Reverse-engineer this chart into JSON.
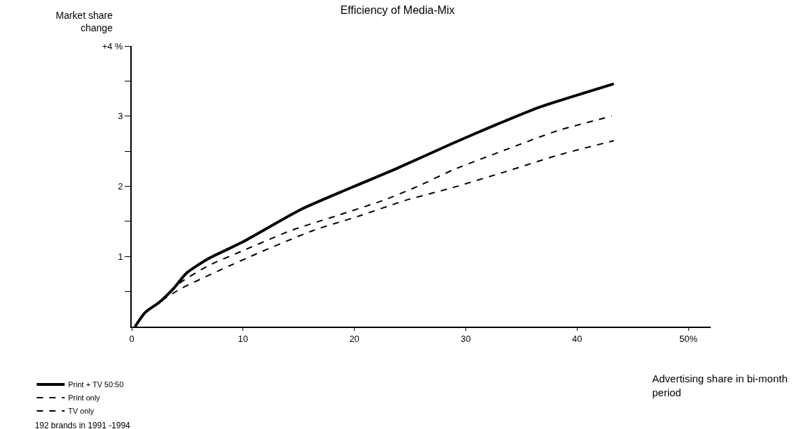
{
  "chart_data": {
    "type": "line",
    "title": "Efficiency of Media-Mix",
    "xlabel": "Advertising share in bi-month period",
    "ylabel": "Market share change",
    "xlim": [
      0,
      52
    ],
    "ylim": [
      0,
      4
    ],
    "xticks": [
      0,
      10,
      20,
      30,
      40,
      {
        "value": 50,
        "label": "50%"
      }
    ],
    "yticks": [
      {
        "value": 0.5,
        "label": null
      },
      1,
      {
        "value": 1.5,
        "label": null
      },
      2,
      {
        "value": 2.5,
        "label": null
      },
      3,
      {
        "value": 3.5,
        "label": null
      },
      {
        "value": 4,
        "label": "+4 %"
      }
    ],
    "legend": "bottom left",
    "annotations": [
      "192 brands in 1991 -1994"
    ],
    "series": [
      {
        "name": "Print + TV 50:50",
        "color": "#000000",
        "line_style": "solid",
        "x": [
          0.3,
          1.2,
          2.5,
          3.8,
          4.9,
          6.9,
          9.9,
          15.2,
          19.4,
          23.6,
          28.8,
          32.6,
          36.5,
          43.3
        ],
        "values": [
          0,
          0.2,
          0.35,
          0.55,
          0.76,
          0.97,
          1.2,
          1.67,
          1.96,
          2.24,
          2.61,
          2.87,
          3.12,
          3.46
        ]
      },
      {
        "name": "Print only",
        "color": "#000000",
        "line_style": "dashed",
        "x": [
          0.3,
          1.2,
          2.5,
          4.4,
          6.9,
          10.1,
          14.3,
          18.4,
          22.6,
          25.7,
          28.8,
          33.4,
          38.2,
          43.1
        ],
        "values": [
          0,
          0.2,
          0.35,
          0.63,
          0.87,
          1.09,
          1.37,
          1.58,
          1.8,
          2.0,
          2.23,
          2.51,
          2.79,
          3.0
        ]
      },
      {
        "name": "TV only",
        "color": "#000000",
        "line_style": "dashed",
        "x": [
          0.3,
          1.2,
          2.5,
          4.4,
          8.0,
          11.1,
          16.3,
          20.5,
          24.6,
          28.8,
          33.4,
          38.2,
          43.3
        ],
        "values": [
          0,
          0.2,
          0.35,
          0.54,
          0.81,
          1.03,
          1.37,
          1.58,
          1.8,
          1.98,
          2.2,
          2.44,
          2.65
        ]
      }
    ]
  }
}
